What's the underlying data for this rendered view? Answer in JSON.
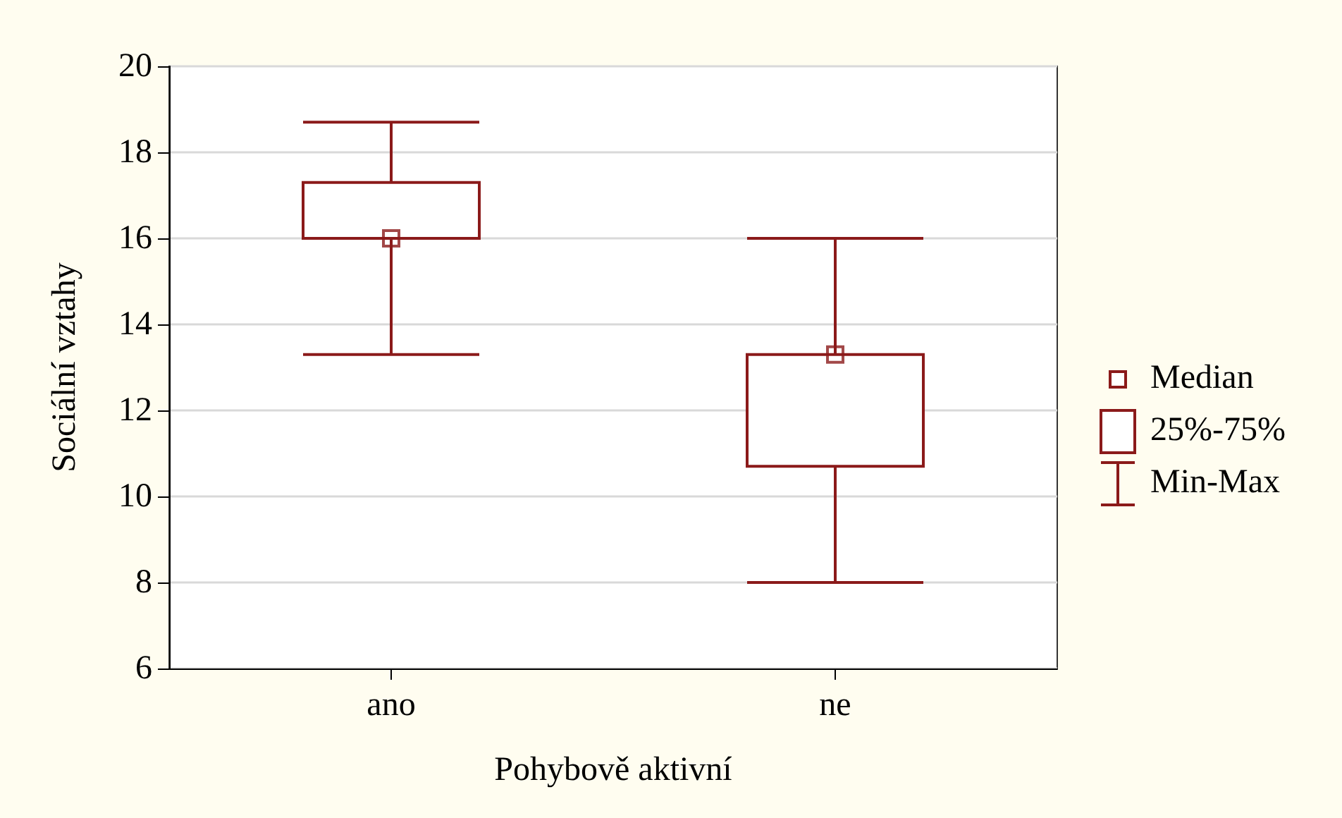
{
  "chart_data": {
    "type": "box",
    "xlabel": "Pohybově aktivní",
    "ylabel": "Sociální vztahy",
    "categories": [
      "ano",
      "ne"
    ],
    "boxes": [
      {
        "low": 13.3,
        "q1": 16,
        "median": 16,
        "q3": 17.3,
        "high": 18.7
      },
      {
        "low": 8,
        "q1": 10.7,
        "median": 13.3,
        "q3": 13.3,
        "high": 16
      }
    ],
    "color": "#8b1a1a",
    "ylim": [
      6,
      20
    ],
    "yticks": [
      6,
      8,
      10,
      12,
      14,
      16,
      18,
      20
    ],
    "grid": "y",
    "series": [
      {
        "type": "scatter",
        "name": "Median",
        "color": "#8b1a1a",
        "marker": "square",
        "x": [
          "ano",
          "ne"
        ],
        "values": [
          16,
          13.3
        ]
      }
    ],
    "annotations": [
      "25%-75%",
      "Min-Max"
    ]
  }
}
